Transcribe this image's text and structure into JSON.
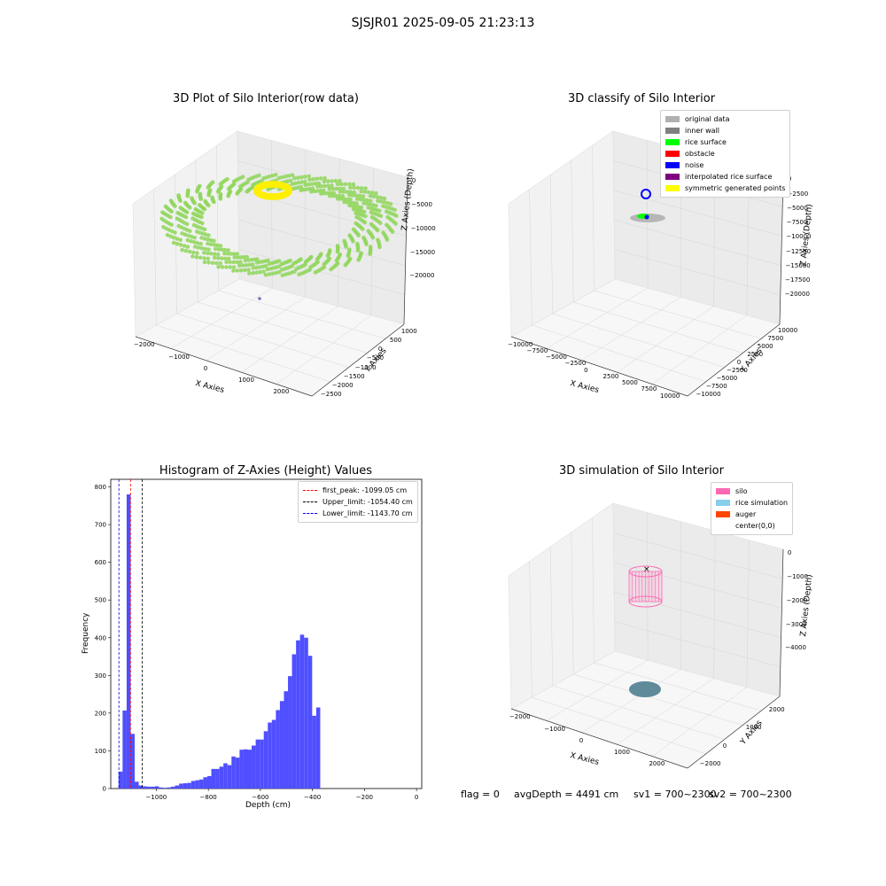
{
  "suptitle": "SJSJR01 2025-09-05 21:23:13",
  "footer": {
    "flag": "flag = 0",
    "avg": "avgDepth = 4491 cm",
    "sv1": "sv1 = 700~2300",
    "sv2": "sv2 = 700~2300"
  },
  "colors": {
    "scatter_green": "#8fd65a",
    "scatter_yellow": "#ffee00",
    "hist_bar": "#4b4bff",
    "first_peak": "#ff0000",
    "upper_limit": "#000000",
    "lower_limit": "#0000ff",
    "silo": "#ff69b4",
    "rice_sim": "#87ceeb",
    "auger": "#ff4500",
    "original": "#b0b0b0",
    "inner_wall": "#808080",
    "rice_surface": "#00ff00",
    "obstacle": "#ff0000",
    "noise": "#0000ff",
    "interpolated": "#800080",
    "symmetric": "#ffff00"
  },
  "chart_data": [
    {
      "type": "scatter",
      "title": "3D Plot of Silo Interior(row data)",
      "xlabel": "X Axies",
      "ylabel": "Y Axies",
      "zlabel": "Z Axies (Depth)",
      "x_ticks": [
        "−2000",
        "−1000",
        "0",
        "1000",
        "2000"
      ],
      "y_ticks": [
        "−2500",
        "−2000",
        "−1500",
        "−1000",
        "−500",
        "0",
        "500",
        "1000"
      ],
      "z_ticks": [
        "0",
        "−5000",
        "−10000",
        "−15000",
        "−20000"
      ],
      "xlim": [
        -2000,
        2500
      ],
      "ylim": [
        -2500,
        1500
      ],
      "zlim": [
        -22000,
        0
      ]
    },
    {
      "type": "scatter",
      "title": "3D classify of Silo Interior",
      "xlabel": "X Axies",
      "ylabel": "Y Axies",
      "zlabel": "Z Axies (Depth)",
      "x_ticks": [
        "−10000",
        "−7500",
        "−5000",
        "−2500",
        "0",
        "2500",
        "5000",
        "7500",
        "10000"
      ],
      "y_ticks": [
        "−10000",
        "−7500",
        "−5000",
        "−2500",
        "0",
        "2500",
        "5000",
        "7500",
        "10000"
      ],
      "z_ticks": [
        "0",
        "−2500",
        "−5000",
        "−7500",
        "−10000",
        "−12500",
        "−15000",
        "−17500",
        "−20000"
      ],
      "legend": [
        "original data",
        "inner wall",
        "rice surface",
        "obstacle",
        "noise",
        "interpolated rice surface",
        "symmetric generated points"
      ],
      "legend_placement": "top-right"
    },
    {
      "type": "bar",
      "title": "Histogram of Z-Axies (Height) Values",
      "xlabel": "Depth (cm)",
      "ylabel": "Frequency",
      "xlim": [
        -1175,
        20
      ],
      "ylim": [
        0,
        820
      ],
      "x_ticks": [
        -1000,
        -800,
        -600,
        -400,
        -200,
        0
      ],
      "y_ticks": [
        0,
        100,
        200,
        300,
        400,
        500,
        600,
        700,
        800
      ],
      "bin_start": -1145,
      "bin_width": 15.5,
      "values": [
        45,
        207,
        780,
        145,
        18,
        8,
        6,
        5,
        5,
        6,
        3,
        2,
        3,
        5,
        8,
        13,
        14,
        15,
        20,
        22,
        24,
        30,
        33,
        52,
        52,
        58,
        67,
        62,
        85,
        82,
        103,
        104,
        103,
        114,
        130,
        130,
        152,
        175,
        182,
        208,
        232,
        258,
        298,
        356,
        393,
        408,
        400,
        352,
        193,
        215
      ],
      "vlines": [
        {
          "label": "first_peak: -1099.05 cm",
          "value": -1099.05,
          "color": "#ff0000"
        },
        {
          "label": "Upper_limit: -1054.40 cm",
          "value": -1054.4,
          "color": "#000000"
        },
        {
          "label": "Lower_limit: -1143.70 cm",
          "value": -1143.7,
          "color": "#0000ff"
        }
      ],
      "legend_placement": "top-right"
    },
    {
      "type": "scatter",
      "title": "3D simulation of Silo Interior",
      "xlabel": "X Axies",
      "ylabel": "Y Axies",
      "zlabel": "Z Axies (Depth)",
      "x_ticks": [
        "−2000",
        "−1000",
        "0",
        "1000",
        "2000"
      ],
      "y_ticks": [
        "−2000",
        "0",
        "1000",
        "2000"
      ],
      "z_ticks": [
        "0",
        "−1000",
        "−2000",
        "−3000",
        "−4000"
      ],
      "legend": [
        "silo",
        "rice simulation",
        "auger",
        "center(0,0)"
      ],
      "legend_placement": "top-right"
    }
  ]
}
